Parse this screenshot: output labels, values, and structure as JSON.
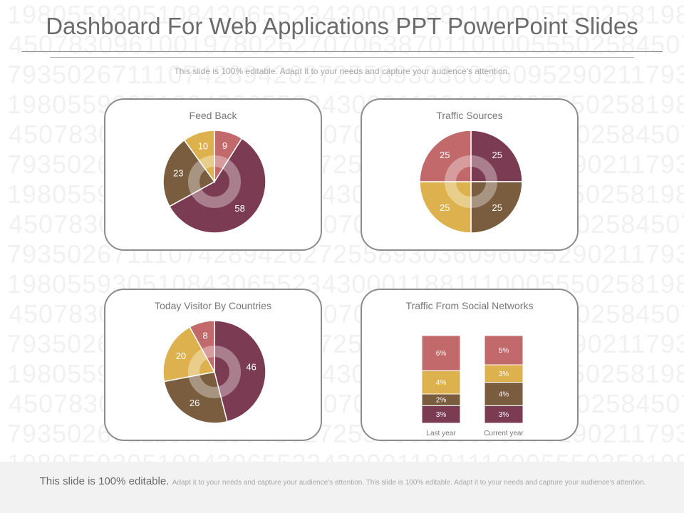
{
  "title": "Dashboard For Web Applications PPT PowerPoint Slides",
  "subtitle": "This slide is 100% editable. Adapt it to your needs and capture your audience's attention.",
  "background_rows": [
    "19805593051084306552343000118811100055502581980",
    "45078309610019780262707063870110100555025845078",
    "79350267111074289426272558930360960952902117935",
    "19805593051084306552343000118811100055502581980",
    "45078309610019780262707063870110100555025845078",
    "79350267111074289426272558930360960952902117935",
    "19805593051084306552343000118811100055502581980",
    "45078309610019780262707063870110100555025845078",
    "79350267111074289426272558930360960952902117935",
    "19805593051084306552343000118811100055502581980",
    "45078309610019780262707063870110100555025845078",
    "79350267111074289426272558930360960952902117935",
    "19805593051084306552343000118811100055502581980",
    "45078309610019780262707063870110100555025845078",
    "79350267111074289426272558930360960952902117935",
    "19805593051084306552343000118811100055502581980"
  ],
  "colors": {
    "plum": "#7b3b52",
    "brown": "#7a5c3e",
    "gold": "#ddb24e",
    "rose": "#c2696b",
    "inner_ring": "#ffffff"
  },
  "chart_data": [
    {
      "type": "pie",
      "title": "Feed Back",
      "slices": [
        {
          "label": "9",
          "value": 9,
          "color": "#c2696b"
        },
        {
          "label": "58",
          "value": 58,
          "color": "#7b3b52"
        },
        {
          "label": "23",
          "value": 23,
          "color": "#7a5c3e"
        },
        {
          "label": "10",
          "value": 10,
          "color": "#ddb24e"
        }
      ]
    },
    {
      "type": "pie",
      "title": "Traffic Sources",
      "slices": [
        {
          "label": "25",
          "value": 25,
          "color": "#7b3b52"
        },
        {
          "label": "25",
          "value": 25,
          "color": "#7a5c3e"
        },
        {
          "label": "25",
          "value": 25,
          "color": "#ddb24e"
        },
        {
          "label": "25",
          "value": 25,
          "color": "#c2696b"
        }
      ]
    },
    {
      "type": "pie",
      "title": "Today Visitor By Countries",
      "slices": [
        {
          "label": "46",
          "value": 46,
          "color": "#7b3b52"
        },
        {
          "label": "26",
          "value": 26,
          "color": "#7a5c3e"
        },
        {
          "label": "20",
          "value": 20,
          "color": "#ddb24e"
        },
        {
          "label": "8",
          "value": 8,
          "color": "#c2696b"
        }
      ]
    },
    {
      "type": "bar",
      "stacked": true,
      "title": "Traffic From Social Networks",
      "categories": [
        "Last year",
        "Current year"
      ],
      "series": [
        {
          "values": [
            3,
            3
          ],
          "labels": [
            "3%",
            "3%"
          ],
          "color": "#7b3b52"
        },
        {
          "values": [
            2,
            4
          ],
          "labels": [
            "2%",
            "4%"
          ],
          "color": "#7a5c3e"
        },
        {
          "values": [
            4,
            3
          ],
          "labels": [
            "4%",
            "3%"
          ],
          "color": "#ddb24e"
        },
        {
          "values": [
            6,
            5
          ],
          "labels": [
            "6%",
            "5%"
          ],
          "color": "#c2696b"
        }
      ]
    }
  ],
  "footer": {
    "main": "This slide is 100% editable.",
    "detail": "Adapt it to your needs and capture your audience's attention. This slide is 100% editable. Adapt it to your needs and capture your audience's attention."
  }
}
